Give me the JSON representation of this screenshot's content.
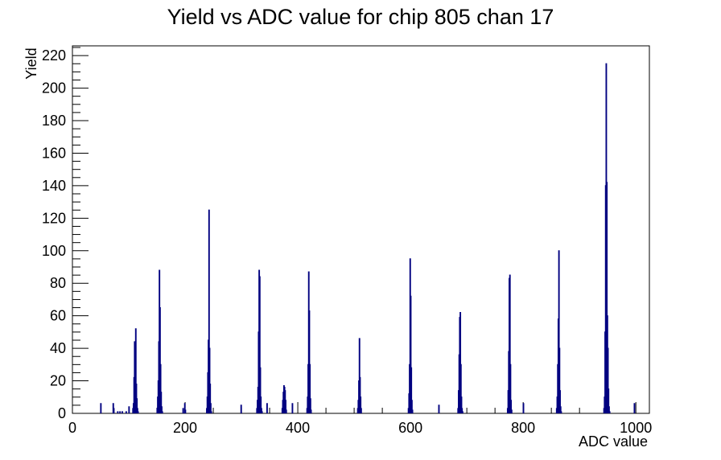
{
  "chart_data": {
    "type": "histogram",
    "title": "Yield vs ADC value for chip 805 chan 17",
    "xlabel": "ADC value",
    "ylabel": "Yield",
    "xlim": [
      0,
      1024
    ],
    "ylim": [
      0,
      226
    ],
    "x_major_ticks": [
      0,
      200,
      400,
      600,
      800,
      1000
    ],
    "y_major_ticks": [
      0,
      20,
      40,
      60,
      80,
      100,
      120,
      140,
      160,
      180,
      200,
      220
    ],
    "x_tick_labels": [
      "0",
      "200",
      "400",
      "600",
      "800",
      "1000"
    ],
    "y_tick_labels": [
      "0",
      "20",
      "40",
      "60",
      "80",
      "100",
      "120",
      "140",
      "160",
      "180",
      "200",
      "220"
    ],
    "grid": false,
    "legend": "none",
    "line_color": "#000080",
    "bins": [
      {
        "x": 50,
        "y": 6
      },
      {
        "x": 72,
        "y": 6
      },
      {
        "x": 73,
        "y": 3
      },
      {
        "x": 80,
        "y": 1
      },
      {
        "x": 84,
        "y": 1
      },
      {
        "x": 88,
        "y": 1
      },
      {
        "x": 95,
        "y": 1
      },
      {
        "x": 100,
        "y": 4
      },
      {
        "x": 107,
        "y": 3
      },
      {
        "x": 108,
        "y": 6
      },
      {
        "x": 109,
        "y": 22
      },
      {
        "x": 110,
        "y": 44
      },
      {
        "x": 111,
        "y": 27
      },
      {
        "x": 112,
        "y": 52
      },
      {
        "x": 113,
        "y": 18
      },
      {
        "x": 114,
        "y": 9
      },
      {
        "x": 115,
        "y": 3
      },
      {
        "x": 116,
        "y": 1
      },
      {
        "x": 150,
        "y": 3
      },
      {
        "x": 151,
        "y": 10
      },
      {
        "x": 152,
        "y": 20
      },
      {
        "x": 153,
        "y": 44
      },
      {
        "x": 154,
        "y": 88
      },
      {
        "x": 155,
        "y": 65
      },
      {
        "x": 156,
        "y": 30
      },
      {
        "x": 157,
        "y": 13
      },
      {
        "x": 158,
        "y": 4
      },
      {
        "x": 159,
        "y": 1
      },
      {
        "x": 196,
        "y": 3
      },
      {
        "x": 199,
        "y": 6
      },
      {
        "x": 200,
        "y": 2
      },
      {
        "x": 238,
        "y": 3
      },
      {
        "x": 239,
        "y": 10
      },
      {
        "x": 240,
        "y": 25
      },
      {
        "x": 241,
        "y": 45
      },
      {
        "x": 242,
        "y": 125
      },
      {
        "x": 243,
        "y": 40
      },
      {
        "x": 244,
        "y": 18
      },
      {
        "x": 245,
        "y": 6
      },
      {
        "x": 246,
        "y": 1
      },
      {
        "x": 299,
        "y": 5
      },
      {
        "x": 327,
        "y": 3
      },
      {
        "x": 328,
        "y": 8
      },
      {
        "x": 329,
        "y": 16
      },
      {
        "x": 330,
        "y": 50
      },
      {
        "x": 331,
        "y": 88
      },
      {
        "x": 332,
        "y": 84
      },
      {
        "x": 333,
        "y": 28
      },
      {
        "x": 334,
        "y": 10
      },
      {
        "x": 335,
        "y": 3
      },
      {
        "x": 336,
        "y": 1
      },
      {
        "x": 345,
        "y": 6
      },
      {
        "x": 372,
        "y": 3
      },
      {
        "x": 373,
        "y": 8
      },
      {
        "x": 374,
        "y": 13
      },
      {
        "x": 375,
        "y": 17
      },
      {
        "x": 376,
        "y": 16
      },
      {
        "x": 377,
        "y": 14
      },
      {
        "x": 378,
        "y": 8
      },
      {
        "x": 379,
        "y": 2
      },
      {
        "x": 390,
        "y": 6
      },
      {
        "x": 416,
        "y": 3
      },
      {
        "x": 417,
        "y": 10
      },
      {
        "x": 418,
        "y": 30
      },
      {
        "x": 419,
        "y": 87
      },
      {
        "x": 420,
        "y": 63
      },
      {
        "x": 421,
        "y": 30
      },
      {
        "x": 422,
        "y": 9
      },
      {
        "x": 423,
        "y": 2
      },
      {
        "x": 506,
        "y": 3
      },
      {
        "x": 507,
        "y": 8
      },
      {
        "x": 508,
        "y": 20
      },
      {
        "x": 509,
        "y": 46
      },
      {
        "x": 510,
        "y": 22
      },
      {
        "x": 511,
        "y": 10
      },
      {
        "x": 512,
        "y": 3
      },
      {
        "x": 596,
        "y": 3
      },
      {
        "x": 597,
        "y": 12
      },
      {
        "x": 598,
        "y": 30
      },
      {
        "x": 599,
        "y": 95
      },
      {
        "x": 600,
        "y": 72
      },
      {
        "x": 601,
        "y": 28
      },
      {
        "x": 602,
        "y": 8
      },
      {
        "x": 603,
        "y": 2
      },
      {
        "x": 650,
        "y": 5
      },
      {
        "x": 684,
        "y": 3
      },
      {
        "x": 685,
        "y": 14
      },
      {
        "x": 686,
        "y": 36
      },
      {
        "x": 687,
        "y": 59
      },
      {
        "x": 688,
        "y": 62
      },
      {
        "x": 689,
        "y": 30
      },
      {
        "x": 690,
        "y": 10
      },
      {
        "x": 691,
        "y": 3
      },
      {
        "x": 692,
        "y": 1
      },
      {
        "x": 772,
        "y": 3
      },
      {
        "x": 773,
        "y": 14
      },
      {
        "x": 774,
        "y": 38
      },
      {
        "x": 775,
        "y": 83
      },
      {
        "x": 776,
        "y": 85
      },
      {
        "x": 777,
        "y": 30
      },
      {
        "x": 778,
        "y": 8
      },
      {
        "x": 779,
        "y": 2
      },
      {
        "x": 800,
        "y": 6
      },
      {
        "x": 859,
        "y": 3
      },
      {
        "x": 860,
        "y": 10
      },
      {
        "x": 861,
        "y": 30
      },
      {
        "x": 862,
        "y": 58
      },
      {
        "x": 863,
        "y": 100
      },
      {
        "x": 864,
        "y": 40
      },
      {
        "x": 865,
        "y": 14
      },
      {
        "x": 866,
        "y": 4
      },
      {
        "x": 867,
        "y": 1
      },
      {
        "x": 943,
        "y": 3
      },
      {
        "x": 944,
        "y": 10
      },
      {
        "x": 945,
        "y": 50
      },
      {
        "x": 946,
        "y": 140
      },
      {
        "x": 947,
        "y": 215
      },
      {
        "x": 948,
        "y": 142
      },
      {
        "x": 949,
        "y": 60
      },
      {
        "x": 950,
        "y": 40
      },
      {
        "x": 951,
        "y": 15
      },
      {
        "x": 952,
        "y": 4
      },
      {
        "x": 953,
        "y": 1
      },
      {
        "x": 997,
        "y": 6
      }
    ]
  }
}
